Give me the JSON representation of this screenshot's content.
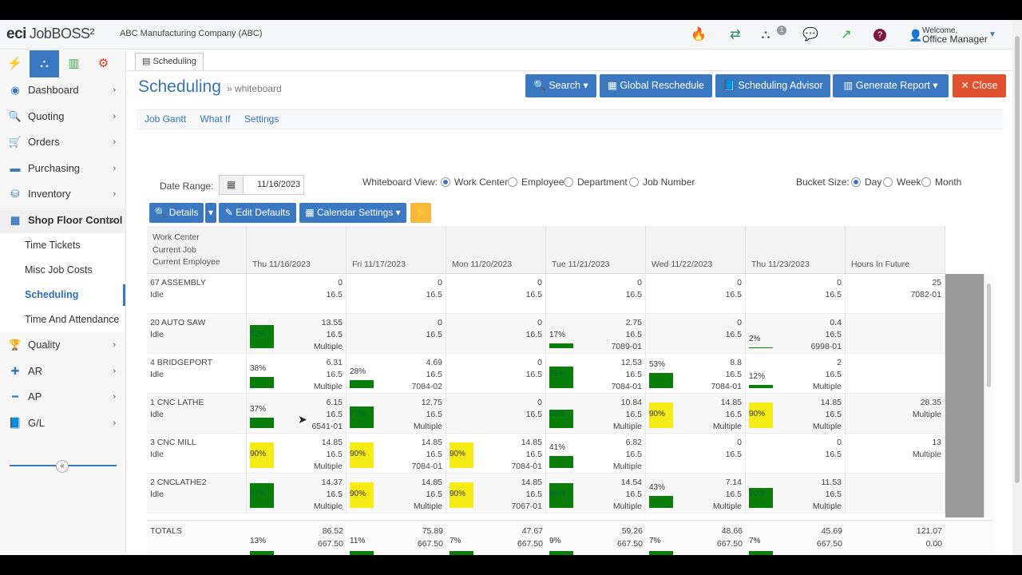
{
  "app": {
    "logo_eci": "eci",
    "logo_name": "JobBOSS²",
    "company": "ABC Manufacturing Company   (ABC)",
    "welcome": "Welcome,",
    "user": "Office Manager",
    "badge": "1"
  },
  "colors": {
    "accent": "#3b78c2",
    "close": "#e0522f",
    "bar_green": "#0b7d0b",
    "bar_yellow": "#f5ec16"
  },
  "top_icons": [
    "flame-icon",
    "refresh-icon",
    "org-chart-icon",
    "chat-icon",
    "external-link-icon",
    "help-icon"
  ],
  "sidebar": {
    "items": [
      {
        "label": "Dashboard",
        "icon": "dashboard-icon"
      },
      {
        "label": "Quoting",
        "icon": "quote-icon"
      },
      {
        "label": "Orders",
        "icon": "cart-icon"
      },
      {
        "label": "Purchasing",
        "icon": "purchasing-icon"
      },
      {
        "label": "Inventory",
        "icon": "inventory-icon"
      },
      {
        "label": "Shop Floor Control",
        "icon": "building-icon"
      }
    ],
    "sub": [
      "Time Tickets",
      "Misc Job Costs",
      "Scheduling",
      "Time And Attendance"
    ],
    "items2": [
      {
        "label": "Quality",
        "icon": "trophy-icon"
      },
      {
        "label": "AR",
        "icon": "plus-icon"
      },
      {
        "label": "AP",
        "icon": "minus-icon"
      },
      {
        "label": "G/L",
        "icon": "book-icon"
      }
    ]
  },
  "page": {
    "tab": "Scheduling",
    "title": "Scheduling",
    "subtitle": "» whiteboard",
    "buttons": {
      "search": "Search",
      "global": "Global Reschedule",
      "advisor": "Scheduling Advisor",
      "report": "Generate Report",
      "close": "Close"
    },
    "subnav": [
      "Job Gantt",
      "What If",
      "Settings"
    ]
  },
  "filters": {
    "date_label": "Date Range:",
    "date_value": "11/16/2023",
    "view_label": "Whiteboard View:",
    "views": [
      "Work Center",
      "Employee",
      "Department",
      "Job Number"
    ],
    "bucket_label": "Bucket Size:",
    "buckets": [
      "Day",
      "Week",
      "Month"
    ]
  },
  "toolbar": {
    "details": "Details",
    "edit": "Edit Defaults",
    "calendar": "Calendar Settings"
  },
  "grid": {
    "header0": [
      "Work Center",
      "Current Job",
      "Current Employee"
    ],
    "days": [
      "Thu 11/16/2023",
      "Fri 11/17/2023",
      "Mon 11/20/2023",
      "Tue 11/21/2023",
      "Wed 11/22/2023",
      "Thu 11/23/2023"
    ],
    "future": "Hours In Future",
    "rows": [
      {
        "name": "67 ASSEMBLY",
        "emp": "Idle",
        "cells": [
          {
            "a": "0",
            "b": "16.5",
            "c": ""
          },
          {
            "a": "0",
            "b": "16.5",
            "c": ""
          },
          {
            "a": "0",
            "b": "16.5",
            "c": ""
          },
          {
            "a": "0",
            "b": "16.5",
            "c": ""
          },
          {
            "a": "0",
            "b": "16.5",
            "c": ""
          },
          {
            "a": "0",
            "b": "16.5",
            "c": ""
          }
        ],
        "future": {
          "a": "25",
          "b": "7082-01"
        }
      },
      {
        "name": "20 AUTO SAW",
        "emp": "Idle",
        "cells": [
          {
            "a": "13.55",
            "b": "16.5",
            "c": "Multiple",
            "p": "82%",
            "v": 82,
            "col": "g"
          },
          {
            "a": "0",
            "b": "16.5",
            "c": ""
          },
          {
            "a": "0",
            "b": "16.5",
            "c": ""
          },
          {
            "a": "2.75",
            "b": "16.5",
            "c": "7089-01",
            "p": "17%",
            "v": 17,
            "col": "g"
          },
          {
            "a": "0",
            "b": "16.5",
            "c": ""
          },
          {
            "a": "0.4",
            "b": "16.5",
            "c": "6998-01",
            "p": "2%",
            "v": 2,
            "col": "g"
          }
        ],
        "future": {
          "a": "",
          "b": ""
        }
      },
      {
        "name": "4 BRIDGEPORT",
        "emp": "Idle",
        "cells": [
          {
            "a": "6.31",
            "b": "16.5",
            "c": "Multiple",
            "p": "38%",
            "v": 38,
            "col": "g"
          },
          {
            "a": "4.69",
            "b": "16.5",
            "c": "7084-02",
            "p": "28%",
            "v": 28,
            "col": "g"
          },
          {
            "a": "0",
            "b": "16.5",
            "c": ""
          },
          {
            "a": "12.53",
            "b": "16.5",
            "c": "7084-01",
            "p": "76%",
            "v": 76,
            "col": "g"
          },
          {
            "a": "8.8",
            "b": "16.5",
            "c": "7084-01",
            "p": "53%",
            "v": 53,
            "col": "g"
          },
          {
            "a": "2",
            "b": "16.5",
            "c": "Multiple",
            "p": "12%",
            "v": 12,
            "col": "g"
          }
        ],
        "future": {
          "a": "",
          "b": ""
        }
      },
      {
        "name": "1 CNC LATHE",
        "emp": "Idle",
        "cells": [
          {
            "a": "6.15",
            "b": "16.5",
            "c": "6541-01",
            "p": "37%",
            "v": 37,
            "col": "g"
          },
          {
            "a": "12.75",
            "b": "16.5",
            "c": "Multiple",
            "p": "77%",
            "v": 77,
            "col": "g"
          },
          {
            "a": "0",
            "b": "16.5",
            "c": ""
          },
          {
            "a": "10.84",
            "b": "16.5",
            "c": "Multiple",
            "p": "66%",
            "v": 66,
            "col": "g"
          },
          {
            "a": "14.85",
            "b": "16.5",
            "c": "Multiple",
            "p": "90%",
            "v": 90,
            "col": "y"
          },
          {
            "a": "14.85",
            "b": "16.5",
            "c": "Multiple",
            "p": "90%",
            "v": 90,
            "col": "y"
          }
        ],
        "future": {
          "a": "28.35",
          "b": "Multiple"
        }
      },
      {
        "name": "3 CNC MILL",
        "emp": "Idle",
        "cells": [
          {
            "a": "14.85",
            "b": "16.5",
            "c": "Multiple",
            "p": "90%",
            "v": 90,
            "col": "y"
          },
          {
            "a": "14.85",
            "b": "16.5",
            "c": "7084-01",
            "p": "90%",
            "v": 90,
            "col": "y"
          },
          {
            "a": "14.85",
            "b": "16.5",
            "c": "7084-01",
            "p": "90%",
            "v": 90,
            "col": "y"
          },
          {
            "a": "6.82",
            "b": "16.5",
            "c": "Multiple",
            "p": "41%",
            "v": 41,
            "col": "g"
          },
          {
            "a": "0",
            "b": "16.5",
            "c": ""
          },
          {
            "a": "0",
            "b": "16.5",
            "c": ""
          }
        ],
        "future": {
          "a": "13",
          "b": "Multiple"
        }
      },
      {
        "name": "2 CNCLATHE2",
        "emp": "Idle",
        "cells": [
          {
            "a": "14.37",
            "b": "16.5",
            "c": "Multiple",
            "p": "87%",
            "v": 87,
            "col": "g"
          },
          {
            "a": "14.85",
            "b": "16.5",
            "c": "Multiple",
            "p": "90%",
            "v": 90,
            "col": "y"
          },
          {
            "a": "14.85",
            "b": "16.5",
            "c": "7067-01",
            "p": "90%",
            "v": 90,
            "col": "y"
          },
          {
            "a": "14.54",
            "b": "16.5",
            "c": "Multiple",
            "p": "88%",
            "v": 88,
            "col": "g"
          },
          {
            "a": "7.14",
            "b": "16.5",
            "c": "Multiple",
            "p": "43%",
            "v": 43,
            "col": "g"
          },
          {
            "a": "11.53",
            "b": "16.5",
            "c": "Multiple",
            "p": "70%",
            "v": 70,
            "col": "g"
          }
        ],
        "future": {
          "a": "",
          "b": ""
        }
      }
    ],
    "totals": {
      "label": "TOTALS",
      "cells": [
        {
          "a": "86.52",
          "b": "667.50",
          "p": "13%"
        },
        {
          "a": "75.89",
          "b": "667.50",
          "p": "11%"
        },
        {
          "a": "47.67",
          "b": "667.50",
          "p": "7%"
        },
        {
          "a": "59.26",
          "b": "667.50",
          "p": "9%"
        },
        {
          "a": "48.66",
          "b": "667.50",
          "p": "7%"
        },
        {
          "a": "45.69",
          "b": "667.50",
          "p": "7%"
        }
      ],
      "future": {
        "a": "121.07",
        "b": "0.00"
      }
    }
  }
}
